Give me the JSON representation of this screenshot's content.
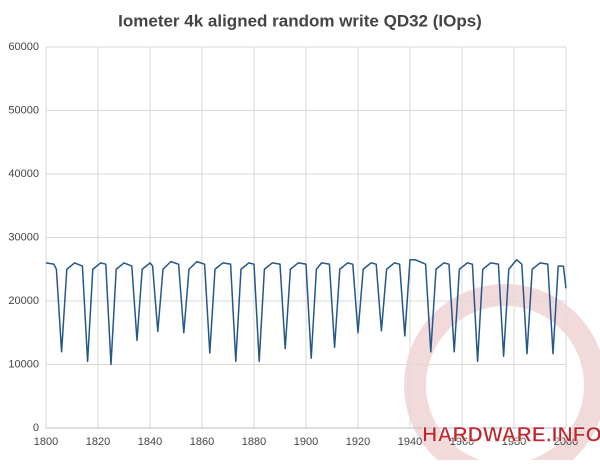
{
  "chart_data": {
    "type": "line",
    "title": "Iometer 4k aligned random write QD32 (IOps)",
    "watermark": "HARDWARE.INFO",
    "x": [
      1800,
      1803,
      1804,
      1806,
      1808,
      1811,
      1814,
      1816,
      1818,
      1821,
      1823,
      1825,
      1827,
      1830,
      1833,
      1835,
      1837,
      1840,
      1841,
      1843,
      1845,
      1848,
      1851,
      1853,
      1855,
      1858,
      1861,
      1863,
      1865,
      1868,
      1871,
      1873,
      1875,
      1878,
      1880,
      1882,
      1884,
      1887,
      1890,
      1892,
      1894,
      1897,
      1900,
      1902,
      1904,
      1906,
      1909,
      1911,
      1913,
      1916,
      1918,
      1920,
      1922,
      1925,
      1927,
      1929,
      1931,
      1934,
      1936,
      1938,
      1940,
      1942,
      1946,
      1948,
      1950,
      1953,
      1955,
      1957,
      1959,
      1962,
      1964,
      1966,
      1968,
      1971,
      1974,
      1976,
      1978,
      1981,
      1983,
      1985,
      1987,
      1990,
      1993,
      1995,
      1997,
      1999,
      2000
    ],
    "series": [
      {
        "color": "#24578a",
        "values": [
          26000,
          25800,
          25000,
          12000,
          25000,
          26000,
          25500,
          10500,
          25000,
          26000,
          25800,
          10000,
          25000,
          26000,
          25500,
          13800,
          25000,
          26000,
          25500,
          15200,
          25000,
          26200,
          25800,
          15000,
          25000,
          26200,
          25800,
          11800,
          25000,
          26000,
          25800,
          10500,
          25000,
          26000,
          25800,
          10500,
          25000,
          26000,
          25800,
          12500,
          25000,
          26000,
          25800,
          11000,
          25000,
          26000,
          25800,
          12700,
          25000,
          26000,
          25800,
          15000,
          25000,
          26000,
          25800,
          15300,
          25000,
          26000,
          25800,
          14500,
          26500,
          26500,
          25800,
          12000,
          25000,
          26000,
          25800,
          12000,
          25000,
          26000,
          25800,
          10500,
          25000,
          26000,
          25800,
          11300,
          25000,
          26500,
          25800,
          11700,
          25000,
          26000,
          25800,
          11700,
          25500,
          25500,
          22000
        ]
      }
    ],
    "xlim": [
      1800,
      2000
    ],
    "xticks": [
      1800,
      1820,
      1840,
      1860,
      1880,
      1900,
      1920,
      1940,
      1960,
      1980,
      2000
    ],
    "ylim": [
      0,
      60000
    ],
    "yticks": [
      0,
      10000,
      20000,
      30000,
      40000,
      50000,
      60000
    ],
    "grid": true
  }
}
